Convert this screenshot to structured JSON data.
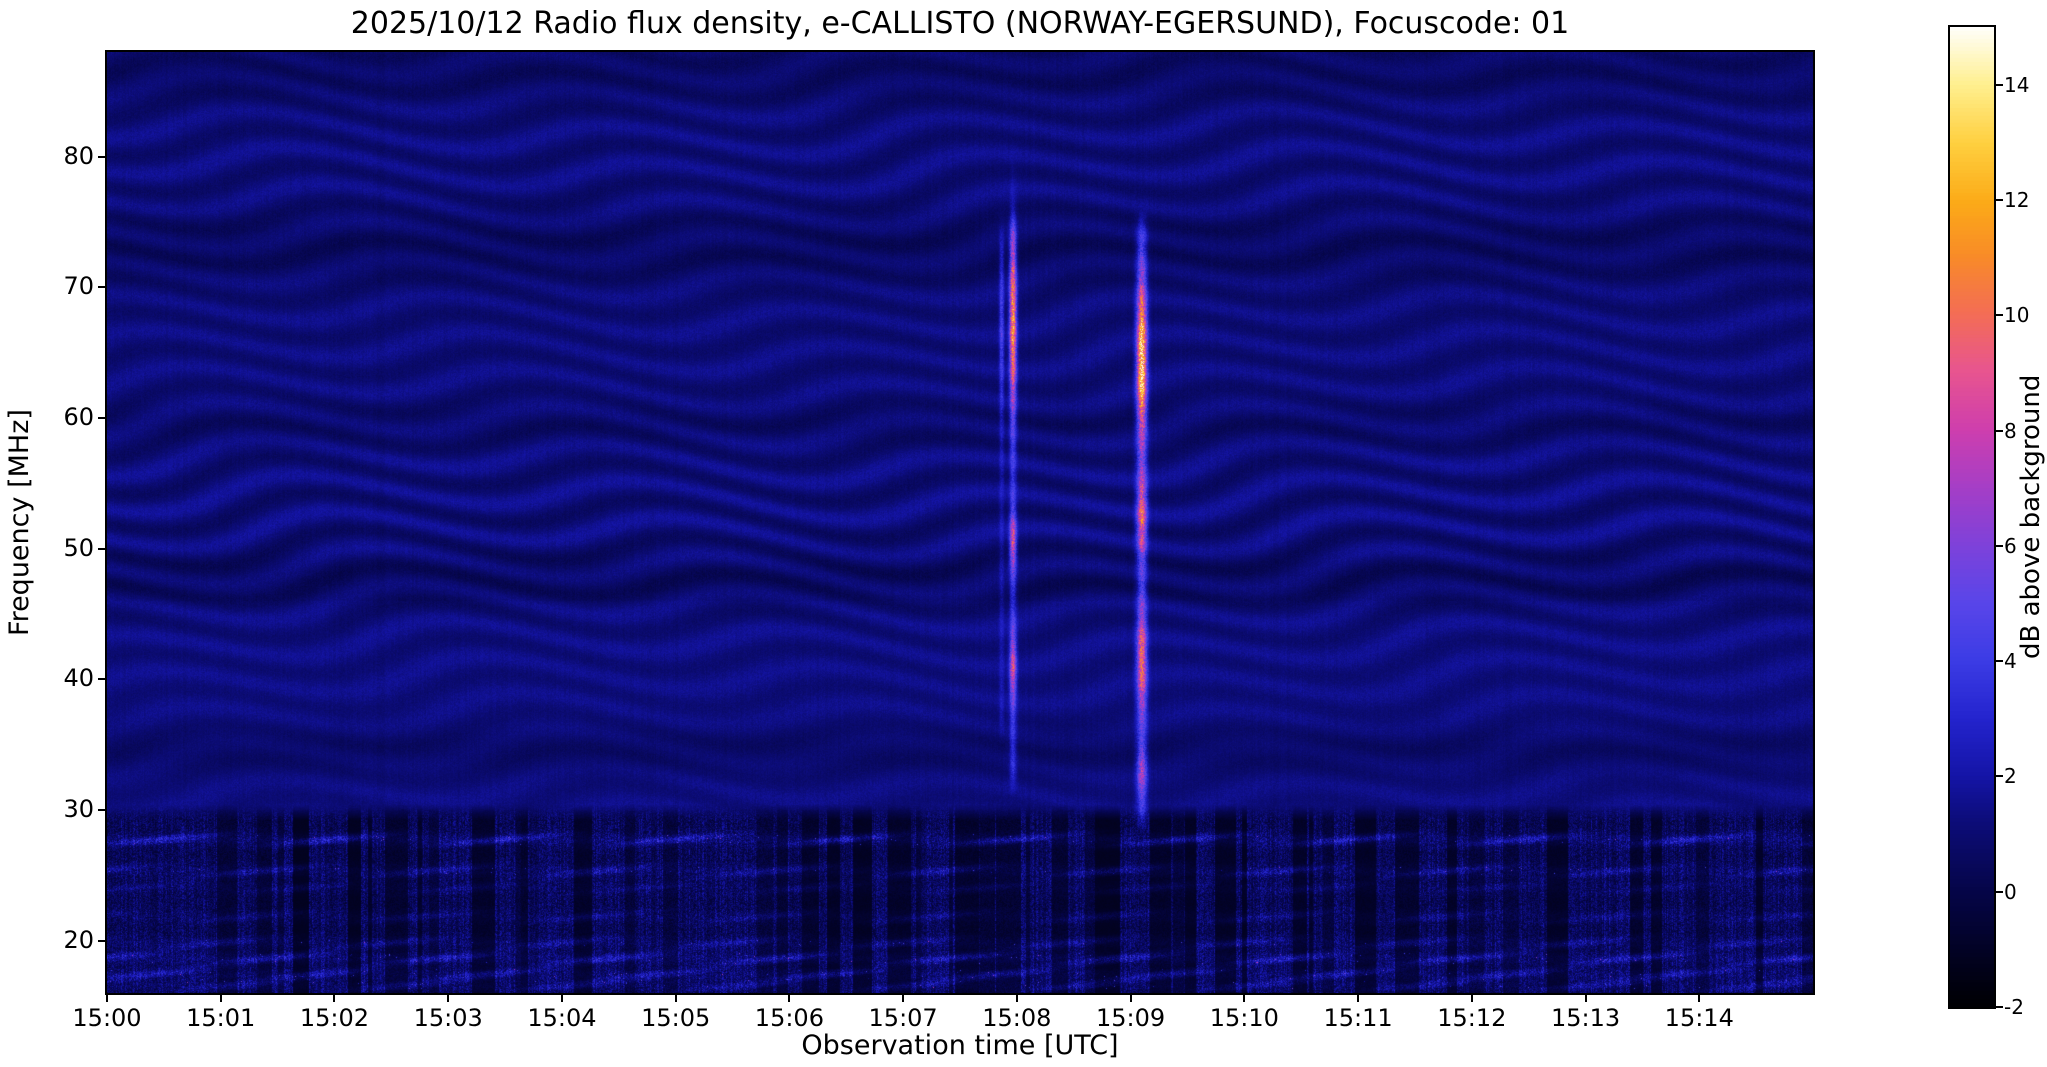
{
  "chart_data": {
    "type": "heatmap",
    "title": "2025/10/12  Radio flux density, e-CALLISTO (NORWAY-EGERSUND), Focuscode: 01",
    "xlabel": "Observation time [UTC]",
    "ylabel": "Frequency [MHz]",
    "colorbar_label": "dB above background",
    "x_start_utc": "15:00",
    "x_end_utc": "15:15",
    "x_range_seconds": [
      0,
      900
    ],
    "x_ticks": [
      "15:00",
      "15:01",
      "15:02",
      "15:03",
      "15:04",
      "15:05",
      "15:06",
      "15:07",
      "15:08",
      "15:09",
      "15:10",
      "15:11",
      "15:12",
      "15:13",
      "15:14"
    ],
    "y_range_mhz": [
      16,
      88
    ],
    "y_ticks": [
      20,
      30,
      40,
      50,
      60,
      70,
      80
    ],
    "value_range_db": [
      -2,
      15
    ],
    "colorbar_ticks": [
      -2,
      0,
      2,
      4,
      6,
      8,
      10,
      12,
      14
    ],
    "colormap_stops": [
      [
        0.0,
        "#000004"
      ],
      [
        0.118,
        "#06064a"
      ],
      [
        0.188,
        "#0d0d7a"
      ],
      [
        0.235,
        "#1515a8"
      ],
      [
        0.294,
        "#2525cf"
      ],
      [
        0.353,
        "#3d3de6"
      ],
      [
        0.412,
        "#5a46ea"
      ],
      [
        0.47,
        "#7f42da"
      ],
      [
        0.53,
        "#a73ec6"
      ],
      [
        0.588,
        "#cf3fae"
      ],
      [
        0.647,
        "#e85590"
      ],
      [
        0.706,
        "#f46e55"
      ],
      [
        0.765,
        "#f98c28"
      ],
      [
        0.82,
        "#fcab18"
      ],
      [
        0.88,
        "#ffd040"
      ],
      [
        0.94,
        "#fff090"
      ],
      [
        1.0,
        "#ffffff"
      ]
    ],
    "background": {
      "level_db": 1.2,
      "ripple_amplitude_db": 0.7,
      "dark_bands_mhz": [
        34.5,
        47.5,
        59.5,
        73,
        86.5
      ]
    },
    "noise_band": {
      "max_freq_mhz": 30,
      "description": "terrestrial interference band below 30 MHz with speckle, dropouts and bright horizontal carrier lines",
      "lines_mhz": [
        [
          27.7,
          3.2
        ],
        [
          25.3,
          2.2
        ],
        [
          24.0,
          1.2
        ],
        [
          21.8,
          1.5
        ],
        [
          19.8,
          2.0
        ],
        [
          18.6,
          3.0
        ],
        [
          17.4,
          2.6
        ],
        [
          16.5,
          2.0
        ]
      ]
    },
    "bursts": [
      {
        "time_utc": "15:07:52",
        "time_s": 472,
        "sigma_s": 1.2,
        "span_mhz": [
          35,
          75
        ],
        "base_db": 1.2,
        "segments": [
          [
            60,
            74,
            2.2
          ]
        ]
      },
      {
        "time_utc": "15:07:58",
        "time_s": 478,
        "sigma_s": 1.8,
        "span_mhz": [
          31,
          76
        ],
        "base_db": 2.5,
        "segments": [
          [
            60,
            75,
            7.5
          ],
          [
            48,
            53,
            5.0
          ],
          [
            38,
            44,
            4.5
          ]
        ]
      },
      {
        "time_utc": "15:09:06",
        "time_s": 546,
        "sigma_s": 2.6,
        "span_mhz": [
          28,
          76
        ],
        "base_db": 3.0,
        "segments": [
          [
            58,
            71,
            9.5
          ],
          [
            49,
            56,
            5.5
          ],
          [
            37,
            46,
            5.5
          ],
          [
            31,
            35,
            3.0
          ]
        ]
      }
    ]
  }
}
